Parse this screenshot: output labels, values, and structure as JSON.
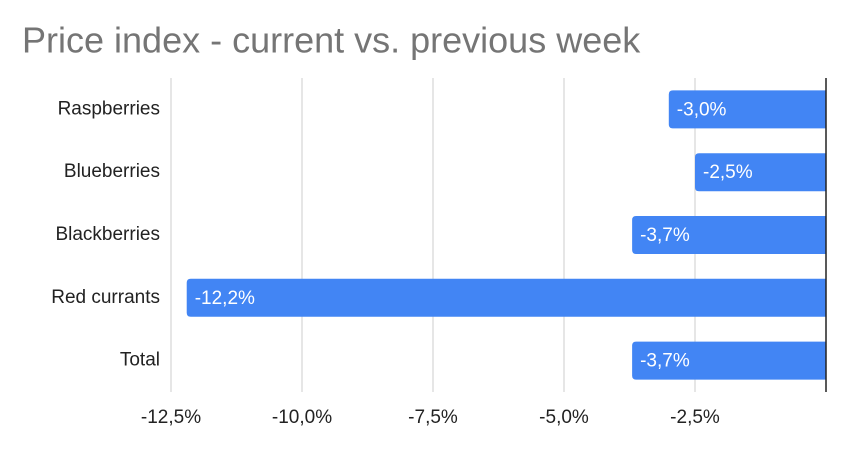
{
  "chart_data": {
    "type": "bar",
    "orientation": "horizontal",
    "title": "Price index - current vs. previous week",
    "categories": [
      "Raspberries",
      "Blueberries",
      "Blackberries",
      "Red currants",
      "Total"
    ],
    "values": [
      -3.0,
      -2.5,
      -3.7,
      -12.2,
      -3.7
    ],
    "value_labels": [
      "-3,0%",
      "-2,5%",
      "-3,7%",
      "-12,2%",
      "-3,7%"
    ],
    "color": "#4285f4",
    "xlim": [
      -12.5,
      0
    ],
    "xticks": [
      {
        "value": -12.5,
        "label": "-12,5%"
      },
      {
        "value": -10,
        "label": "-10,0%"
      },
      {
        "value": -7.5,
        "label": "-7,5%"
      },
      {
        "value": -5,
        "label": "-5,0%"
      },
      {
        "value": -2.5,
        "label": "-2,5%"
      }
    ],
    "grid": true
  }
}
